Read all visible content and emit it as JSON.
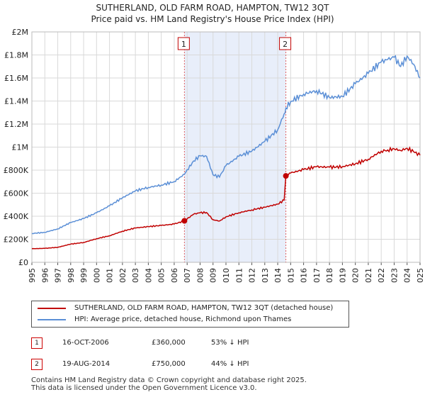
{
  "chart_data": {
    "type": "line",
    "title": "SUTHERLAND, OLD FARM ROAD, HAMPTON, TW12 3QT",
    "subtitle": "Price paid vs. HM Land Registry's House Price Index (HPI)",
    "x_ticks": [
      "1995",
      "1996",
      "1997",
      "1998",
      "1999",
      "2000",
      "2001",
      "2002",
      "2003",
      "2004",
      "2005",
      "2006",
      "2007",
      "2008",
      "2009",
      "2010",
      "2011",
      "2012",
      "2013",
      "2014",
      "2015",
      "2016",
      "2017",
      "2018",
      "2019",
      "2020",
      "2021",
      "2022",
      "2023",
      "2024",
      "2025"
    ],
    "y_ticks": [
      {
        "value": 0,
        "label": "£0"
      },
      {
        "value": 200000,
        "label": "£200K"
      },
      {
        "value": 400000,
        "label": "£400K"
      },
      {
        "value": 600000,
        "label": "£600K"
      },
      {
        "value": 800000,
        "label": "£800K"
      },
      {
        "value": 1000000,
        "label": "£1M"
      },
      {
        "value": 1200000,
        "label": "£1.2M"
      },
      {
        "value": 1400000,
        "label": "£1.4M"
      },
      {
        "value": 1600000,
        "label": "£1.6M"
      },
      {
        "value": 1800000,
        "label": "£1.8M"
      },
      {
        "value": 2000000,
        "label": "£2M"
      }
    ],
    "xlim": [
      1995,
      2025
    ],
    "ylim": [
      0,
      2000000
    ],
    "grid": true,
    "shaded_region": [
      2006.79,
      2014.63
    ],
    "series": [
      {
        "name": "SUTHERLAND, OLD FARM ROAD, HAMPTON, TW12 3QT (detached house)",
        "color": "#c00000",
        "x": [
          1995.0,
          1996.0,
          1997.0,
          1998.0,
          1999.0,
          2000.0,
          2001.0,
          2002.0,
          2003.0,
          2004.0,
          2005.0,
          2006.0,
          2006.79,
          2007.5,
          2008.0,
          2008.5,
          2009.0,
          2009.5,
          2010.0,
          2011.0,
          2012.0,
          2013.0,
          2014.0,
          2014.5,
          2014.63,
          2015.0,
          2016.0,
          2017.0,
          2018.0,
          2019.0,
          2020.0,
          2021.0,
          2022.0,
          2022.5,
          2023.0,
          2023.5,
          2024.0,
          2024.5,
          2025.0
        ],
        "y": [
          118000,
          121000,
          130000,
          158000,
          172000,
          205000,
          230000,
          270000,
          298000,
          310000,
          320000,
          332000,
          360000,
          418000,
          430000,
          432000,
          370000,
          358000,
          395000,
          430000,
          455000,
          478000,
          505000,
          540000,
          750000,
          775000,
          805000,
          830000,
          825000,
          830000,
          855000,
          895000,
          965000,
          975000,
          985000,
          970000,
          990000,
          960000,
          930000
        ]
      },
      {
        "name": "HPI: Average price, detached house, Richmond upon Thames",
        "color": "#5b8fd6",
        "x": [
          1995.0,
          1996.0,
          1997.0,
          1998.0,
          1999.0,
          2000.0,
          2001.0,
          2002.0,
          2003.0,
          2004.0,
          2005.0,
          2006.0,
          2006.79,
          2007.5,
          2008.0,
          2008.5,
          2009.0,
          2009.5,
          2010.0,
          2011.0,
          2012.0,
          2013.0,
          2014.0,
          2014.5,
          2014.63,
          2015.0,
          2016.0,
          2017.0,
          2018.0,
          2019.0,
          2020.0,
          2021.0,
          2022.0,
          2022.5,
          2023.0,
          2023.5,
          2024.0,
          2024.5,
          2025.0
        ],
        "y": [
          250000,
          260000,
          290000,
          345000,
          380000,
          430000,
          490000,
          560000,
          620000,
          650000,
          670000,
          700000,
          765000,
          880000,
          925000,
          920000,
          760000,
          740000,
          840000,
          920000,
          965000,
          1050000,
          1150000,
          1290000,
          1340000,
          1395000,
          1460000,
          1490000,
          1430000,
          1440000,
          1550000,
          1640000,
          1740000,
          1760000,
          1780000,
          1700000,
          1790000,
          1720000,
          1600000
        ]
      }
    ],
    "annotations": [
      {
        "label": "1",
        "x": 2006.79
      },
      {
        "label": "2",
        "x": 2014.63
      }
    ],
    "sale_points": [
      {
        "x": 2006.79,
        "y": 360000
      },
      {
        "x": 2014.63,
        "y": 750000
      }
    ]
  },
  "legend": {
    "items": [
      {
        "label": "SUTHERLAND, OLD FARM ROAD, HAMPTON, TW12 3QT (detached house)",
        "color": "#c00000"
      },
      {
        "label": "HPI: Average price, detached house, Richmond upon Thames",
        "color": "#5b8fd6"
      }
    ]
  },
  "sales": [
    {
      "num": "1",
      "date": "16-OCT-2006",
      "price": "£360,000",
      "hpi": "53% ↓ HPI"
    },
    {
      "num": "2",
      "date": "19-AUG-2014",
      "price": "£750,000",
      "hpi": "44% ↓ HPI"
    }
  ],
  "footer": {
    "line1": "Contains HM Land Registry data © Crown copyright and database right 2025.",
    "line2": "This data is licensed under the Open Government Licence v3.0."
  }
}
